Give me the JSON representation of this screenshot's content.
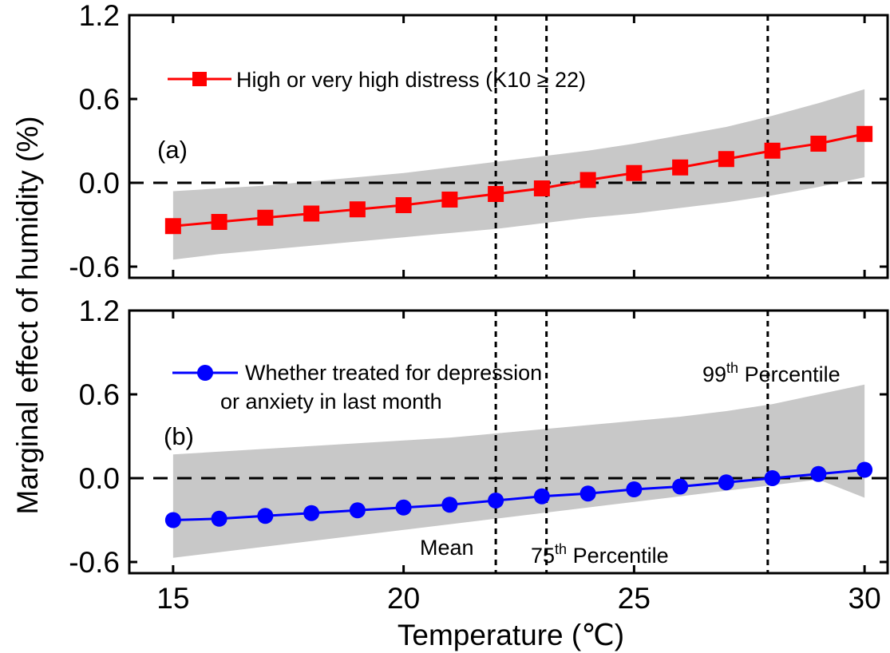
{
  "figure": {
    "ylabel": "Marginal effect of humidity (%)",
    "xlabel": "Temperature (℃)"
  },
  "chart_data": [
    {
      "type": "line",
      "panel_label": "(a)",
      "x": [
        15,
        16,
        17,
        18,
        19,
        20,
        21,
        22,
        23,
        24,
        25,
        26,
        27,
        28,
        29,
        30
      ],
      "series": [
        {
          "name": "High or very high distress (K10 ≥ 22)",
          "color": "#ff0000",
          "marker": "square",
          "values": [
            -0.31,
            -0.28,
            -0.25,
            -0.22,
            -0.19,
            -0.16,
            -0.12,
            -0.08,
            -0.04,
            0.02,
            0.07,
            0.11,
            0.17,
            0.23,
            0.28,
            0.35
          ]
        }
      ],
      "ci_band": {
        "color": "#c8c8c8",
        "lower": [
          -0.55,
          -0.51,
          -0.48,
          -0.45,
          -0.42,
          -0.39,
          -0.36,
          -0.33,
          -0.29,
          -0.25,
          -0.22,
          -0.18,
          -0.14,
          -0.09,
          -0.03,
          0.04
        ],
        "upper": [
          -0.06,
          -0.04,
          -0.02,
          0.01,
          0.04,
          0.07,
          0.11,
          0.15,
          0.19,
          0.23,
          0.28,
          0.34,
          0.4,
          0.48,
          0.57,
          0.67
        ]
      },
      "ylim": [
        -0.68,
        1.2
      ],
      "yticks": [
        "1.2",
        "0.6",
        "0.0",
        "-0.6"
      ],
      "ytick_values": [
        1.2,
        0.6,
        0.0,
        -0.6
      ],
      "legend_position": "top-left",
      "zero_line": 0.0,
      "vlines": [
        22.0,
        23.1,
        27.9
      ]
    },
    {
      "type": "line",
      "panel_label": "(b)",
      "x": [
        15,
        16,
        17,
        18,
        19,
        20,
        21,
        22,
        23,
        24,
        25,
        26,
        27,
        28,
        29,
        30
      ],
      "series": [
        {
          "name_lines": [
            "Whether treated for depression",
            "or anxiety in last month"
          ],
          "color": "#0000ff",
          "marker": "circle",
          "values": [
            -0.3,
            -0.29,
            -0.27,
            -0.25,
            -0.23,
            -0.21,
            -0.19,
            -0.16,
            -0.13,
            -0.11,
            -0.08,
            -0.06,
            -0.03,
            0.0,
            0.03,
            0.06
          ]
        }
      ],
      "ci_band": {
        "color": "#c8c8c8",
        "lower": [
          -0.57,
          -0.53,
          -0.49,
          -0.45,
          -0.41,
          -0.37,
          -0.33,
          -0.29,
          -0.25,
          -0.21,
          -0.17,
          -0.13,
          -0.09,
          -0.05,
          -0.01,
          -0.14
        ],
        "upper": [
          0.17,
          0.19,
          0.21,
          0.23,
          0.25,
          0.27,
          0.29,
          0.32,
          0.35,
          0.38,
          0.41,
          0.44,
          0.48,
          0.53,
          0.6,
          0.67
        ]
      },
      "ylim": [
        -0.68,
        1.2
      ],
      "yticks": [
        "1.2",
        "0.6",
        "0.0",
        "-0.6"
      ],
      "ytick_values": [
        1.2,
        0.6,
        0.0,
        -0.6
      ],
      "xticks": [
        "15",
        "20",
        "25",
        "30"
      ],
      "xtick_values": [
        15,
        20,
        25,
        30
      ],
      "legend_position": "top-left",
      "zero_line": 0.0,
      "vlines": [
        22.0,
        23.1,
        27.9
      ],
      "annotations": {
        "mean": "Mean",
        "p75_num": "75",
        "p75_sup": "th",
        "p75_rest": " Percentile",
        "p99_num": "99",
        "p99_sup": "th",
        "p99_rest": " Percentile"
      }
    }
  ],
  "colors": {
    "ci_band": "#c8c8c8",
    "series_a": "#ff0000",
    "series_b": "#0000ff",
    "axes": "#000000"
  }
}
